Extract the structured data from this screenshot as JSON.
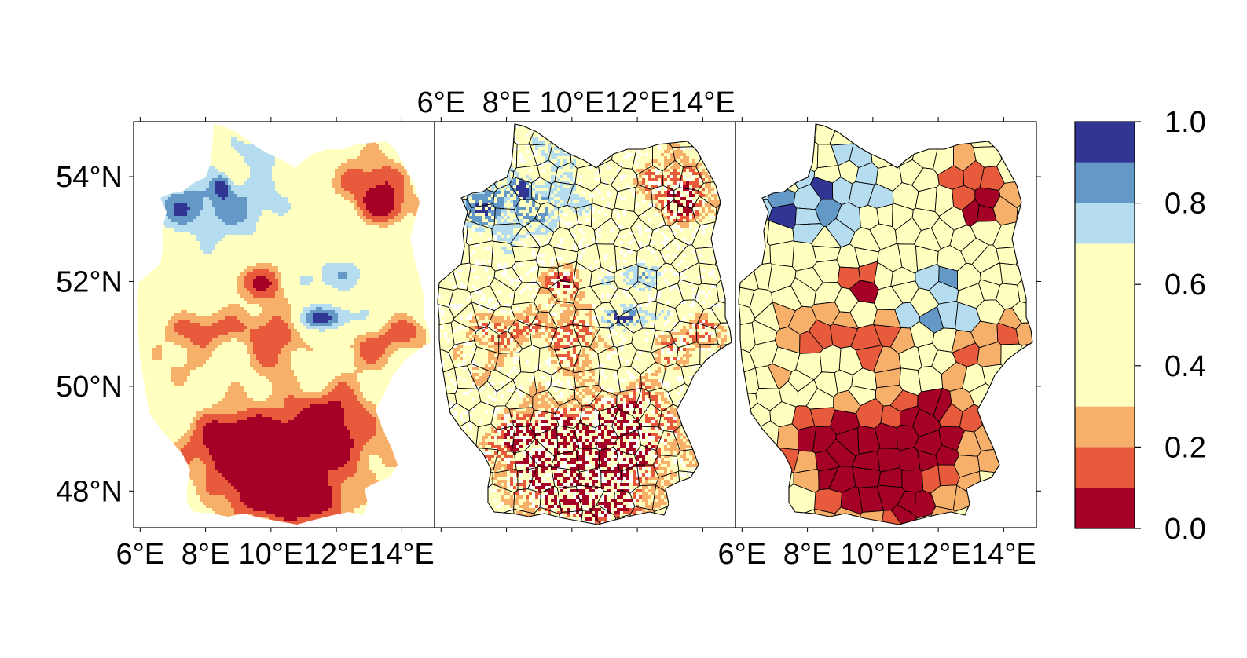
{
  "colors": {
    "frame": "#000000",
    "background": "#ffffff"
  },
  "color_scale": {
    "breaks": [
      0.0,
      0.1,
      0.2,
      0.3,
      0.7,
      0.8,
      0.9,
      1.0
    ],
    "colors": [
      "#a50026",
      "#e75a3b",
      "#f6b06a",
      "#ffffbf",
      "#b5dcef",
      "#6498c6",
      "#313695"
    ],
    "tick_values": [
      0.0,
      0.2,
      0.4,
      0.6,
      0.8,
      1.0
    ],
    "tick_labels": [
      "0.0",
      "0.2",
      "0.4",
      "0.6",
      "0.8",
      "1.0"
    ]
  },
  "axes": {
    "lon_labels": [
      "6°E",
      "8°E",
      "10°E",
      "12°E",
      "14°E"
    ],
    "lat_labels": [
      "48°N",
      "50°N",
      "52°N",
      "54°N"
    ],
    "lon_range": [
      5.8,
      15.0
    ],
    "lat_range": [
      47.3,
      55.05
    ]
  },
  "panels": [
    {
      "id": "left",
      "kind": "gridded",
      "lon_labels_position": "bottom",
      "lat_labels_position": "left",
      "district_boundaries": false
    },
    {
      "id": "middle",
      "kind": "gridded-with-districts",
      "lon_labels_position": "top",
      "district_boundaries": true
    },
    {
      "id": "right",
      "kind": "district-aggregated",
      "lon_labels_position": "bottom",
      "lat_labels_position": "right",
      "district_boundaries": true
    }
  ]
}
